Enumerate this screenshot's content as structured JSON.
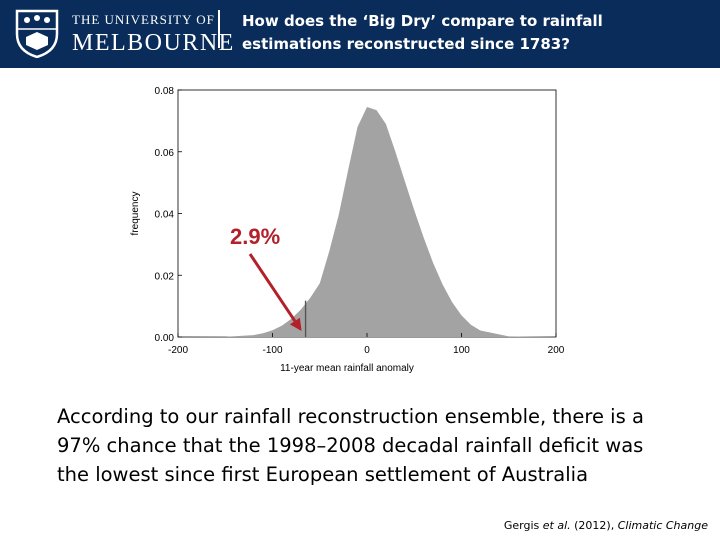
{
  "header": {
    "logo_line1": "THE UNIVERSITY OF",
    "logo_line2": "MELBOURNE",
    "title_line1": "How does the ‘Big Dry’ compare to rainfall",
    "title_line2": "estimations reconstructed  since 1783?"
  },
  "colors": {
    "header_bg": "#0a2c5a",
    "fill": "#a3a3a3",
    "annotation": "#b3202a",
    "marker_line": "#555555"
  },
  "chart_data": {
    "type": "area",
    "title": "",
    "xlabel": "11-year mean rainfall anomaly",
    "ylabel": "frequency",
    "xlim": [
      -200,
      200
    ],
    "ylim": [
      0,
      0.08
    ],
    "x_ticks": [
      "-200",
      "-100",
      "0",
      "100",
      "200"
    ],
    "y_ticks": [
      "0.00",
      "0.02",
      "0.04",
      "0.06",
      "0.08"
    ],
    "grid": false,
    "legend": "none",
    "series": [
      {
        "x": [
          -200,
          -150,
          -120,
          -110,
          -100,
          -90,
          -80,
          -70,
          -60,
          -50,
          -40,
          -30,
          -20,
          -10,
          0,
          10,
          20,
          30,
          40,
          50,
          60,
          70,
          80,
          90,
          100,
          110,
          120,
          150,
          200
        ],
        "values": [
          0,
          0.0001,
          0.0006,
          0.0012,
          0.0022,
          0.0037,
          0.0059,
          0.0089,
          0.0127,
          0.0174,
          0.0277,
          0.0395,
          0.054,
          0.068,
          0.0745,
          0.0735,
          0.069,
          0.06,
          0.0505,
          0.041,
          0.0322,
          0.024,
          0.017,
          0.0113,
          0.007,
          0.004,
          0.0021,
          0.0002,
          0
        ]
      }
    ],
    "marker": {
      "x": -65,
      "label": "2.9%"
    }
  },
  "body_text": {
    "line1": "According to our rainfall reconstruction ensemble, there is a",
    "line2": "97% chance that the 1998–2008 decadal rainfall deficit was",
    "line3": "the lowest since first European settlement of Australia"
  },
  "citation": {
    "authors": "Gergis ",
    "etal": "et al.",
    "year": " (2012), ",
    "journal": "Climatic Change"
  }
}
